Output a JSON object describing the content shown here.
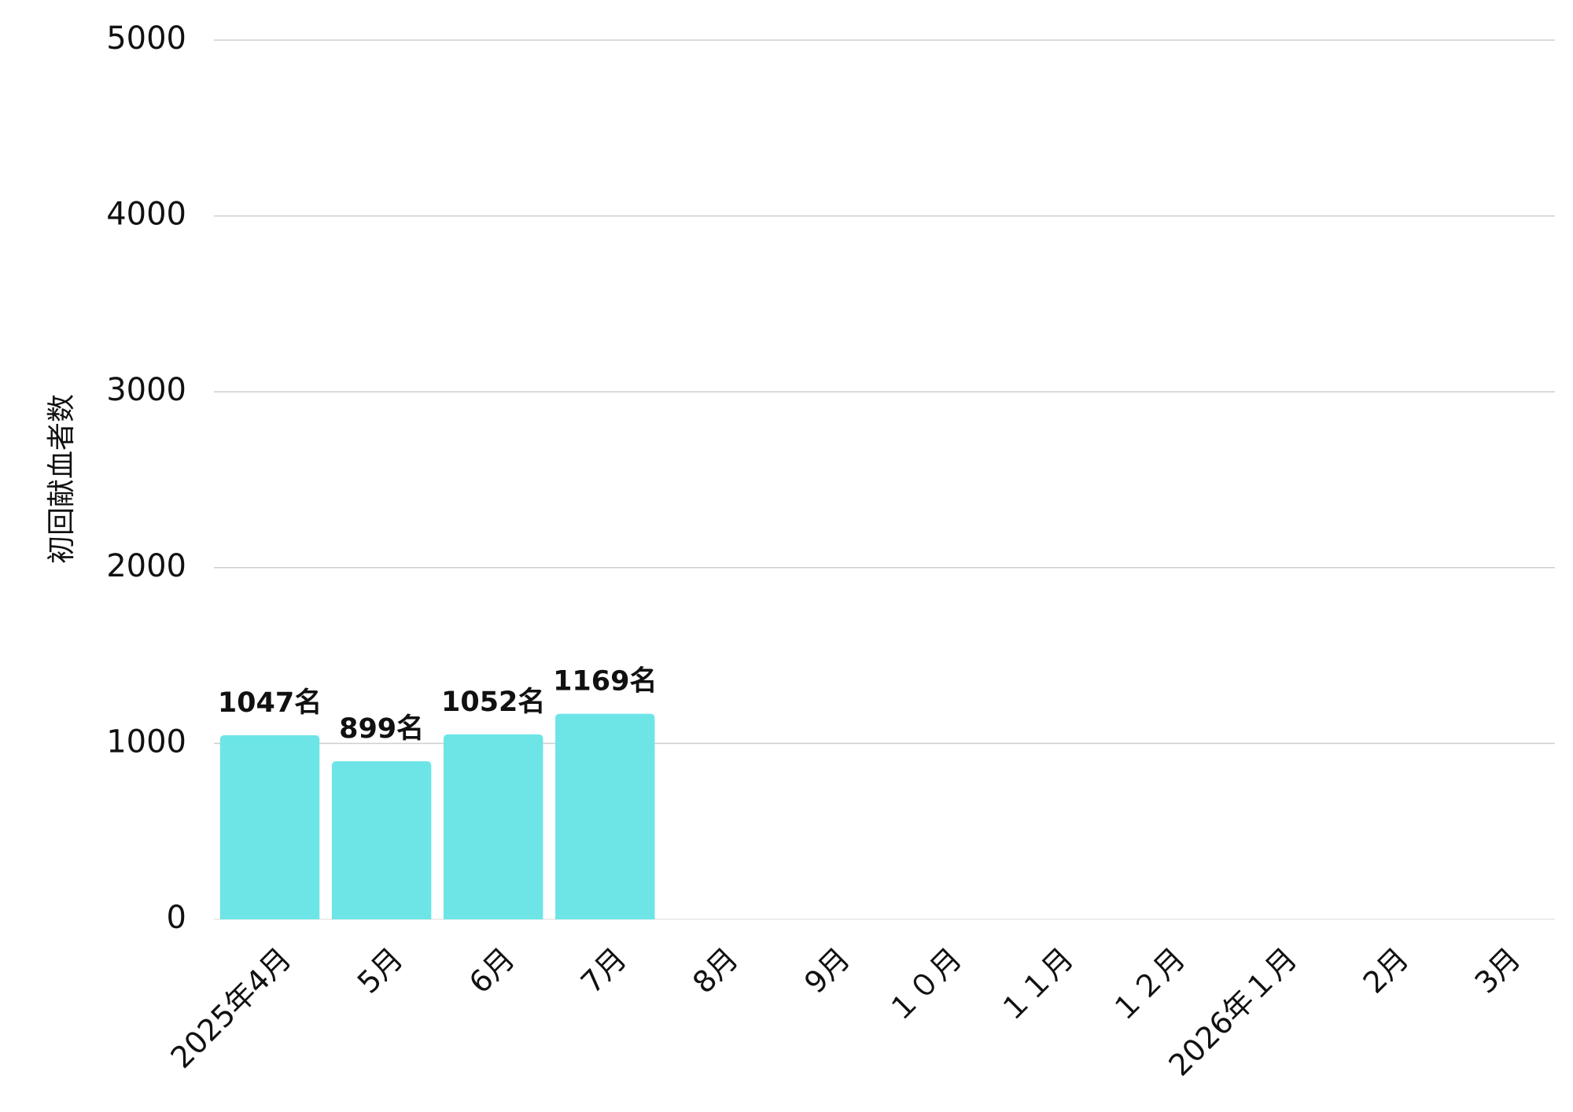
{
  "chart_data": {
    "type": "bar",
    "y_label": "初回献血者数",
    "categories": [
      "2025年4月",
      "5月",
      "6月",
      "7月",
      "8月",
      "9月",
      "１０月",
      "１１月",
      "１２月",
      "2026年１月",
      "2月",
      "3月"
    ],
    "values": [
      1047,
      899,
      1052,
      1169,
      null,
      null,
      null,
      null,
      null,
      null,
      null,
      null
    ],
    "value_labels": [
      "1047名",
      "899名",
      "1052名",
      "1169名",
      null,
      null,
      null,
      null,
      null,
      null,
      null,
      null
    ],
    "color": "#6de5e7",
    "ylim": [
      0,
      5000
    ],
    "yticks": [
      0,
      1000,
      2000,
      3000,
      4000,
      5000
    ],
    "grid": true
  }
}
